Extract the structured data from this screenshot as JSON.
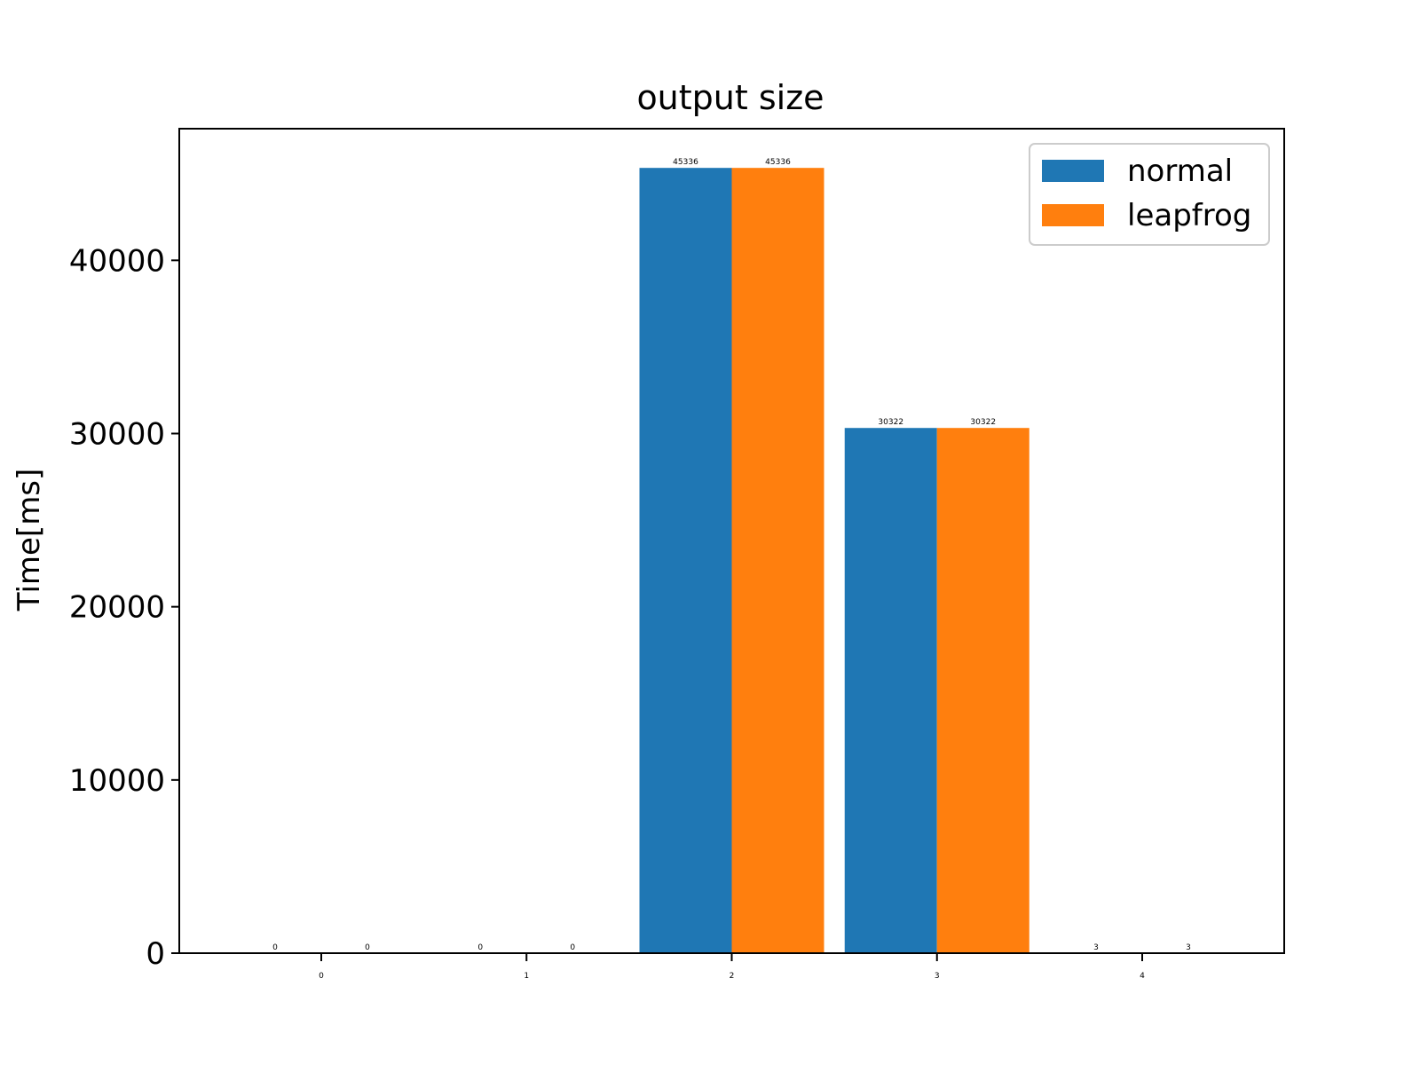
{
  "chart_data": {
    "type": "bar",
    "title": "output size",
    "xlabel": "",
    "ylabel": "Time[ms]",
    "categories": [
      "0",
      "1",
      "2",
      "3",
      "4"
    ],
    "series": [
      {
        "name": "normal",
        "values": [
          0,
          0,
          45336,
          30322,
          3
        ],
        "color": "#1f77b4"
      },
      {
        "name": "leapfrog",
        "values": [
          0,
          0,
          45336,
          30322,
          3
        ],
        "color": "#ff7f0e"
      }
    ],
    "ylim": [
      0,
      47600
    ],
    "yticks": [
      0,
      10000,
      20000,
      30000,
      40000
    ],
    "grid": false,
    "legend_position": "top-right"
  }
}
